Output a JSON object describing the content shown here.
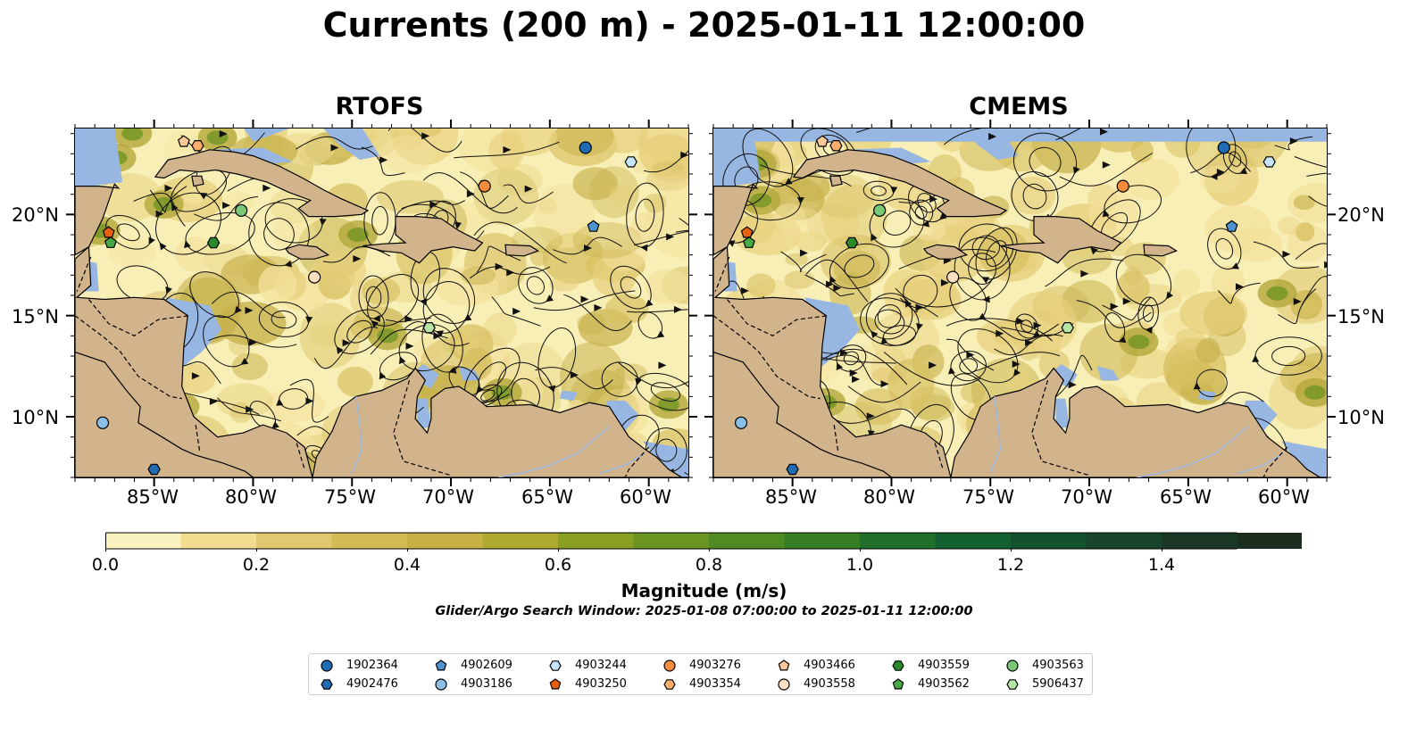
{
  "title": "Currents (200 m) - 2025-01-11 12:00:00",
  "panels": [
    {
      "name": "RTOFS"
    },
    {
      "name": "CMEMS"
    }
  ],
  "axes": {
    "lon_ticks": [
      "85°W",
      "80°W",
      "75°W",
      "70°W",
      "65°W",
      "60°W"
    ],
    "lat_ticks": [
      "20°N",
      "15°N",
      "10°N"
    ]
  },
  "colorbar": {
    "label": "Magnitude (m/s)",
    "ticks": [
      "0.0",
      "0.2",
      "0.4",
      "0.6",
      "0.8",
      "1.0",
      "1.2",
      "1.4"
    ],
    "colors": [
      "#fbf3bf",
      "#f0dd90",
      "#e0c870",
      "#d4bb55",
      "#c8b044",
      "#b0aa32",
      "#8aa022",
      "#6b9420",
      "#4f8a22",
      "#357e24",
      "#1f6e2a",
      "#136030",
      "#12522e",
      "#17442a",
      "#1b3826",
      "#1c2e20"
    ],
    "caption": "Glider/Argo Search Window: 2025-01-08 07:00:00 to 2025-01-11 12:00:00"
  },
  "colors": {
    "land": "#d2b48c",
    "shallow_water": "#97b6e2",
    "map_background": "#f8efb6"
  },
  "legend": [
    {
      "id": "1902364",
      "shape": "circle",
      "color": "#1f6bb4"
    },
    {
      "id": "4902476",
      "shape": "hexagon",
      "color": "#1f6bb4"
    },
    {
      "id": "4902609",
      "shape": "pentagon",
      "color": "#4c93cf"
    },
    {
      "id": "4903186",
      "shape": "circle",
      "color": "#8bbfe6"
    },
    {
      "id": "4903244",
      "shape": "hexagon",
      "color": "#c6e3f7"
    },
    {
      "id": "4903250",
      "shape": "pentagon",
      "color": "#e6600f"
    },
    {
      "id": "4903276",
      "shape": "circle",
      "color": "#f58b3c"
    },
    {
      "id": "4903354",
      "shape": "hexagon",
      "color": "#fbae6b"
    },
    {
      "id": "4903466",
      "shape": "pentagon",
      "color": "#fdc898"
    },
    {
      "id": "4903558",
      "shape": "circle",
      "color": "#fde0c2"
    },
    {
      "id": "4903559",
      "shape": "hexagon",
      "color": "#2a8a2a"
    },
    {
      "id": "4903562",
      "shape": "pentagon",
      "color": "#47a847"
    },
    {
      "id": "4903563",
      "shape": "circle",
      "color": "#78c878"
    },
    {
      "id": "5906437",
      "shape": "hexagon",
      "color": "#b6e6a6"
    }
  ],
  "floats": [
    {
      "id": "1902364",
      "lon": -63.2,
      "lat": 23.3
    },
    {
      "id": "4902476",
      "lon": -85.0,
      "lat": 7.4
    },
    {
      "id": "4902609",
      "lon": -62.8,
      "lat": 19.4
    },
    {
      "id": "4903186",
      "lon": -87.6,
      "lat": 9.7
    },
    {
      "id": "4903244",
      "lon": -60.9,
      "lat": 22.6
    },
    {
      "id": "4903250",
      "lon": -87.3,
      "lat": 19.1
    },
    {
      "id": "4903276",
      "lon": -68.3,
      "lat": 21.4
    },
    {
      "id": "4903354",
      "lon": -82.8,
      "lat": 23.4
    },
    {
      "id": "4903466",
      "lon": -83.5,
      "lat": 23.6
    },
    {
      "id": "4903558",
      "lon": -76.9,
      "lat": 16.9
    },
    {
      "id": "4903559",
      "lon": -82.0,
      "lat": 18.6
    },
    {
      "id": "4903562",
      "lon": -87.2,
      "lat": 18.6
    },
    {
      "id": "4903563",
      "lon": -80.6,
      "lat": 20.2
    },
    {
      "id": "5906437",
      "lon": -71.1,
      "lat": 14.4
    }
  ]
}
